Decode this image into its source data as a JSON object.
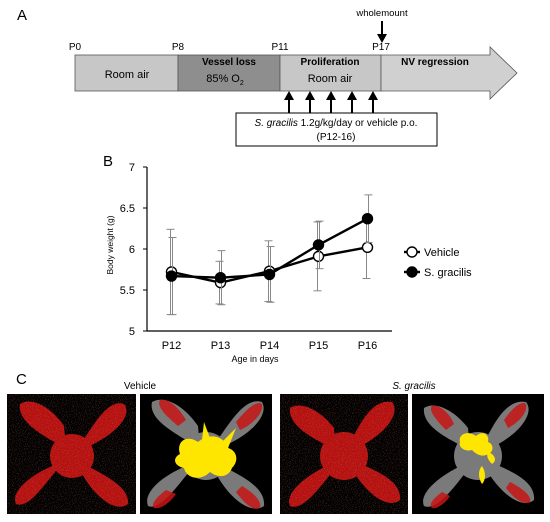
{
  "panel_a": {
    "label": "A",
    "time_points": [
      "P0",
      "P8",
      "P11",
      "P17"
    ],
    "wholemount_label": "wholemount",
    "phases": [
      {
        "title": "",
        "body": "Room air"
      },
      {
        "title": "Vessel loss",
        "body": "85% O",
        "sub": "2"
      },
      {
        "title": "Proliferation",
        "body": "Room air"
      },
      {
        "title": "NV regression",
        "body": ""
      }
    ],
    "treatment_species": "S. gracilis",
    "treatment_text": " 1.2g/kg/day or vehicle p.o.",
    "treatment_days": "(P12-16)",
    "colors": {
      "room_air": "#c7c7c7",
      "vessel_loss": "#8e8e8e",
      "arrow": "#d0d0d0"
    }
  },
  "panel_b": {
    "label": "B",
    "chart_data": {
      "type": "line",
      "categories": [
        "P12",
        "P13",
        "P14",
        "P15",
        "P16"
      ],
      "xlabel": "Age in days",
      "ylabel": "Body weight (g)",
      "ylim": [
        5,
        7
      ],
      "yticks": [
        5,
        5.5,
        6,
        6.5,
        7
      ],
      "grid": false,
      "legend_position": "right",
      "series": [
        {
          "name": "Vehicle",
          "marker": "open-circle",
          "values": [
            5.72,
            5.59,
            5.73,
            5.91,
            6.02
          ],
          "errors": [
            0.52,
            0.26,
            0.37,
            0.42,
            0.38
          ]
        },
        {
          "name": "S. gracilis",
          "marker": "filled-circle",
          "values": [
            5.67,
            5.65,
            5.69,
            6.05,
            6.37
          ],
          "errors": [
            0.47,
            0.33,
            0.34,
            0.29,
            0.29
          ]
        }
      ]
    }
  },
  "panel_c": {
    "label": "C",
    "groups": [
      {
        "label": "Vehicle",
        "italic": false
      },
      {
        "label": "S. gracilis",
        "italic": true
      }
    ],
    "colors": {
      "vessel": "#c81414",
      "nv": "#ffe600",
      "background": "#000000",
      "avascular": "#8a8a8a"
    }
  }
}
